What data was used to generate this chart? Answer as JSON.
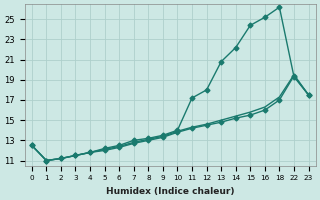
{
  "xlabel": "Humidex (Indice chaleur)",
  "ylabel": "",
  "bg_color": "#cde8e4",
  "grid_color": "#aed0cc",
  "line_color": "#1a7a6e",
  "xlim": [
    -0.5,
    19.5
  ],
  "ylim": [
    10.5,
    26.5
  ],
  "xtick_labels": [
    "0",
    "1",
    "2",
    "3",
    "4",
    "5",
    "6",
    "7",
    "8",
    "9",
    "10",
    "11",
    "12",
    "13",
    "14",
    "15",
    "16",
    "18",
    "22",
    "23"
  ],
  "yticks": [
    11,
    13,
    15,
    17,
    19,
    21,
    23,
    25
  ],
  "line1_x": [
    0,
    1,
    2,
    3,
    4,
    5,
    6,
    7,
    8,
    9,
    10,
    11,
    12,
    13,
    14,
    15,
    16,
    17,
    18,
    19
  ],
  "line1_y": [
    12.5,
    11.0,
    11.2,
    11.5,
    11.8,
    12.2,
    12.5,
    13.0,
    13.2,
    13.5,
    14.0,
    17.2,
    18.0,
    20.8,
    22.2,
    24.4,
    25.2,
    26.2,
    19.3,
    17.5
  ],
  "line2_x": [
    0,
    1,
    2,
    3,
    4,
    5,
    6,
    7,
    8,
    9,
    10,
    11,
    12,
    13,
    14,
    15,
    16,
    17,
    18,
    19
  ],
  "line2_y": [
    12.5,
    11.0,
    11.2,
    11.5,
    11.8,
    12.0,
    12.3,
    12.7,
    13.0,
    13.3,
    13.8,
    14.2,
    14.5,
    14.8,
    15.2,
    15.5,
    16.0,
    17.0,
    19.4,
    17.5
  ],
  "line3_x": [
    0,
    1,
    2,
    3,
    4,
    5,
    6,
    7,
    8,
    9,
    10,
    11,
    12,
    13,
    14,
    15,
    16,
    17,
    18,
    19
  ],
  "line3_y": [
    12.5,
    11.0,
    11.2,
    11.5,
    11.8,
    12.1,
    12.4,
    12.8,
    13.1,
    13.4,
    13.9,
    14.3,
    14.6,
    15.0,
    15.4,
    15.8,
    16.3,
    17.3,
    19.5,
    17.5
  ],
  "marker": "D",
  "marker_size": 2.5,
  "linewidth": 1.0
}
